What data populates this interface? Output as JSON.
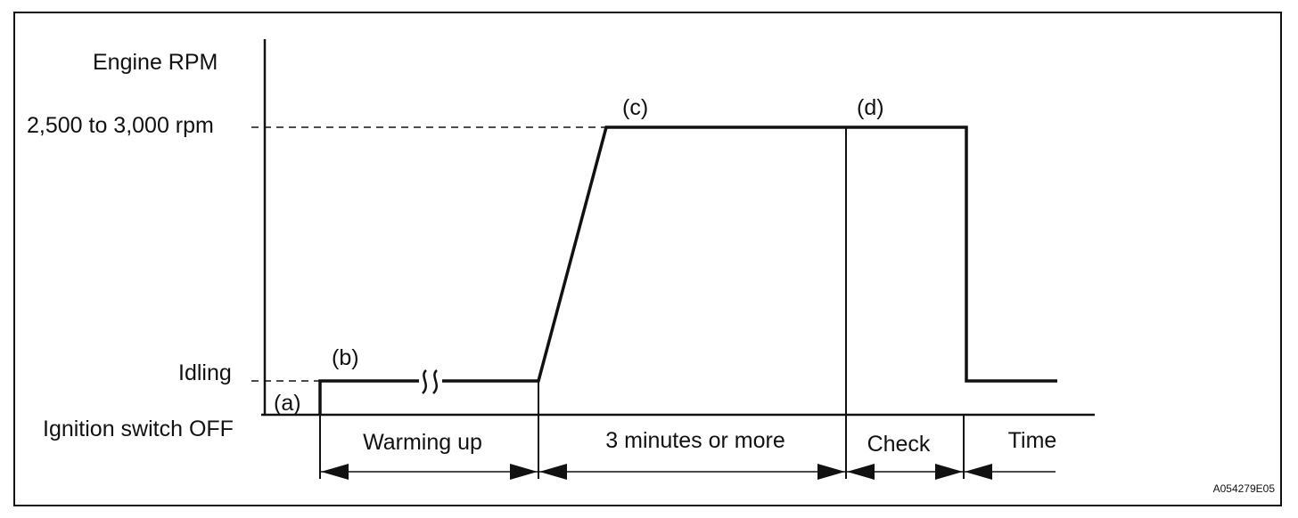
{
  "labels": {
    "y_axis_title": "Engine RPM",
    "rpm_level": "2,500 to 3,000 rpm",
    "idle_level": "Idling",
    "off_level": "Ignition switch OFF",
    "step_a": "(a)",
    "step_b": "(b)",
    "step_c": "(c)",
    "step_d": "(d)",
    "phase_warm": "Warming up",
    "phase_hold": "3 minutes or more",
    "phase_check": "Check",
    "time_axis": "Time",
    "figure_code": "A054279E05"
  },
  "colors": {
    "line": "#111111",
    "background": "#ffffff"
  }
}
